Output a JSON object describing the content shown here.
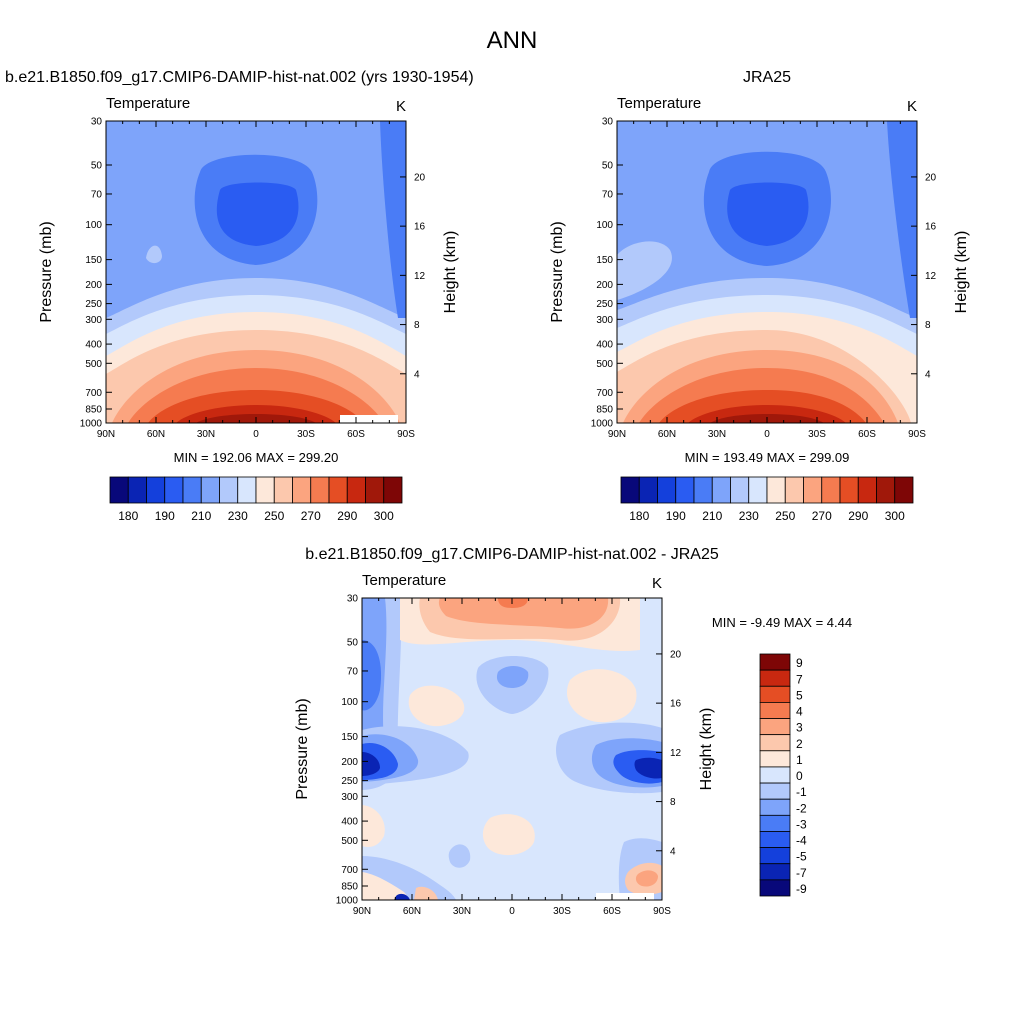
{
  "page": {
    "title": "ANN"
  },
  "colors": {
    "abs": [
      "#08087a",
      "#0a24b4",
      "#1440dc",
      "#2a5cf2",
      "#4a7cf6",
      "#7ea4fa",
      "#b2c9fb",
      "#d8e6fd",
      "#fde8da",
      "#fcc8ad",
      "#fba47f",
      "#f57b50",
      "#e54e24",
      "#c82810",
      "#a0180a",
      "#7e0606"
    ],
    "diff": [
      "#08087a",
      "#0a24b4",
      "#1440dc",
      "#2a5cf2",
      "#4a7cf6",
      "#7ea4fa",
      "#b2c9fb",
      "#d8e6fd",
      "#fde8da",
      "#fcc8ad",
      "#fba47f",
      "#f57b50",
      "#e54e24",
      "#c82810",
      "#7e0606"
    ]
  },
  "chart_data": [
    {
      "id": "model",
      "type": "contour",
      "title": "b.e21.B1850.f09_g17.CMIP6-DAMIP-hist-nat.002 (yrs 1930-1954)",
      "left_string": "Temperature",
      "right_string": "K",
      "ylabel": "Pressure (mb)",
      "ylabel_right": "Height (km)",
      "x_ticks": [
        "90N",
        "60N",
        "30N",
        "0",
        "30S",
        "60S",
        "90S"
      ],
      "y_ticks": [
        "30",
        "50",
        "70",
        "100",
        "150",
        "200",
        "250",
        "300",
        "400",
        "500",
        "700",
        "850",
        "1000"
      ],
      "y_ticks_right": [
        "20",
        "16",
        "12",
        "8",
        "4"
      ],
      "stats": "MIN = 192.06  MAX = 299.20",
      "colorbar_labels": [
        "180",
        "190",
        "210",
        "230",
        "250",
        "270",
        "290",
        "300"
      ],
      "min": 192.06,
      "max": 299.2
    },
    {
      "id": "obs",
      "type": "contour",
      "title": "JRA25",
      "left_string": "Temperature",
      "right_string": "K",
      "ylabel": "Pressure (mb)",
      "ylabel_right": "Height (km)",
      "x_ticks": [
        "90N",
        "60N",
        "30N",
        "0",
        "30S",
        "60S",
        "90S"
      ],
      "y_ticks": [
        "30",
        "50",
        "70",
        "100",
        "150",
        "200",
        "250",
        "300",
        "400",
        "500",
        "700",
        "850",
        "1000"
      ],
      "y_ticks_right": [
        "20",
        "16",
        "12",
        "8",
        "4"
      ],
      "stats": "MIN = 193.49  MAX = 299.09",
      "colorbar_labels": [
        "180",
        "190",
        "210",
        "230",
        "250",
        "270",
        "290",
        "300"
      ],
      "min": 193.49,
      "max": 299.09
    },
    {
      "id": "diff",
      "type": "contour",
      "title": "b.e21.B1850.f09_g17.CMIP6-DAMIP-hist-nat.002 - JRA25",
      "left_string": "Temperature",
      "right_string": "K",
      "ylabel": "Pressure (mb)",
      "ylabel_right": "Height (km)",
      "x_ticks": [
        "90N",
        "60N",
        "30N",
        "0",
        "30S",
        "60S",
        "90S"
      ],
      "y_ticks": [
        "30",
        "50",
        "70",
        "100",
        "150",
        "200",
        "250",
        "300",
        "400",
        "500",
        "700",
        "850",
        "1000"
      ],
      "y_ticks_right": [
        "20",
        "16",
        "12",
        "8",
        "4"
      ],
      "stats": "MIN =  -9.49  MAX =   4.44",
      "colorbar_labels": [
        "9",
        "7",
        "5",
        "4",
        "3",
        "2",
        "1",
        "0",
        "-1",
        "-2",
        "-3",
        "-4",
        "-5",
        "-7",
        "-9"
      ],
      "min": -9.49,
      "max": 4.44
    }
  ]
}
